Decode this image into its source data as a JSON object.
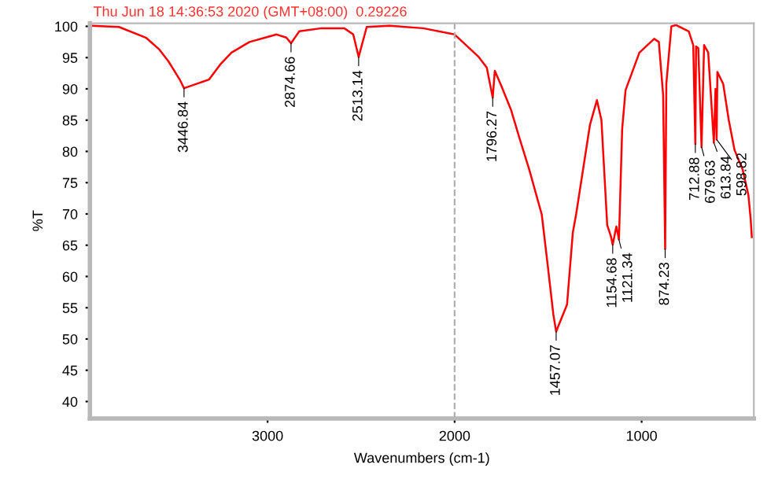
{
  "chart_data": {
    "type": "line",
    "xlabel": "Wavenumbers (cm-1)",
    "ylabel": "%T",
    "xlim": [
      3950,
      400
    ],
    "xticks": [
      3000,
      2000,
      1000
    ],
    "ylim": [
      37.3,
      100.5
    ],
    "yticks": [
      40,
      45,
      50,
      55,
      60,
      65,
      70,
      75,
      80,
      85,
      90,
      95,
      100
    ],
    "grid": false,
    "marker": "none",
    "line_style": "solid",
    "ref_lines": [
      {
        "axis": "x",
        "value": 2000,
        "color": "#b0b0b0",
        "line_style": "dashed"
      }
    ],
    "series": [
      {
        "color": "#ff0000",
        "x": [
          3940,
          3795,
          3651,
          3579,
          3530,
          3470,
          3446.84,
          3313,
          3253,
          3193,
          3097,
          3012,
          2952,
          2900,
          2874.66,
          2831,
          2711,
          2590,
          2542,
          2513.14,
          2470,
          2349,
          2169,
          2000,
          1871,
          1828,
          1796.27,
          1785,
          1748,
          1699,
          1656,
          1600,
          1534,
          1503,
          1472,
          1457.07,
          1399,
          1368,
          1350,
          1276,
          1239,
          1215,
          1184,
          1165,
          1154.68,
          1135,
          1121.34,
          1104,
          1086,
          1012,
          933,
          908,
          885,
          874.23,
          868,
          841,
          816,
          748,
          724,
          712.88,
          709,
          697,
          679.63,
          666,
          644,
          613.84,
          605,
          598.82,
          595,
          564,
          534,
          503,
          460,
          429,
          417,
          411
        ],
        "values": [
          100.1,
          99.9,
          98.2,
          96.3,
          94.4,
          91.5,
          90.1,
          91.5,
          93.9,
          95.8,
          97.5,
          98.2,
          98.7,
          98.2,
          97.3,
          99.2,
          99.7,
          99.7,
          98.7,
          95.1,
          99.9,
          100.1,
          99.7,
          98.7,
          95.1,
          93.4,
          88.6,
          92.9,
          90.3,
          86.7,
          82.4,
          77,
          69.9,
          62,
          53.9,
          51.2,
          55.5,
          67,
          70,
          84.3,
          88.2,
          85,
          68.2,
          66.5,
          65.1,
          68,
          65.9,
          83.6,
          89.8,
          95.8,
          98,
          97.5,
          89,
          64.4,
          90.8,
          100,
          100.2,
          99.2,
          97,
          81.2,
          96.8,
          96.5,
          80.7,
          97,
          95.8,
          81.4,
          90,
          81.9,
          92.7,
          90.8,
          85,
          80.2,
          77.1,
          73,
          69.2,
          66.3
        ]
      }
    ],
    "annotations": [
      "Thu Jun 18 14:36:53 2020 (GMT+08:00)  0.29226",
      {
        "text": "3446.84",
        "x": 3446.84,
        "y": 90.1
      },
      {
        "text": "2874.66",
        "x": 2874.66,
        "y": 97.3
      },
      {
        "text": "2513.14",
        "x": 2513.14,
        "y": 95.1
      },
      {
        "text": "1796.27",
        "x": 1796.27,
        "y": 88.6
      },
      {
        "text": "1457.07",
        "x": 1457.07,
        "y": 51.2
      },
      {
        "text": "1154.68",
        "x": 1154.68,
        "y": 65.1
      },
      {
        "text": "1121.34",
        "x": 1121.34,
        "y": 65.9
      },
      {
        "text": "874.23",
        "x": 874.23,
        "y": 64.4
      },
      {
        "text": "712.88",
        "x": 712.88,
        "y": 81.2
      },
      {
        "text": "679.63",
        "x": 679.63,
        "y": 80.7
      },
      {
        "text": "613.84",
        "x": 613.84,
        "y": 81.4
      },
      {
        "text": "598.82",
        "x": 598.82,
        "y": 81.9
      }
    ]
  }
}
